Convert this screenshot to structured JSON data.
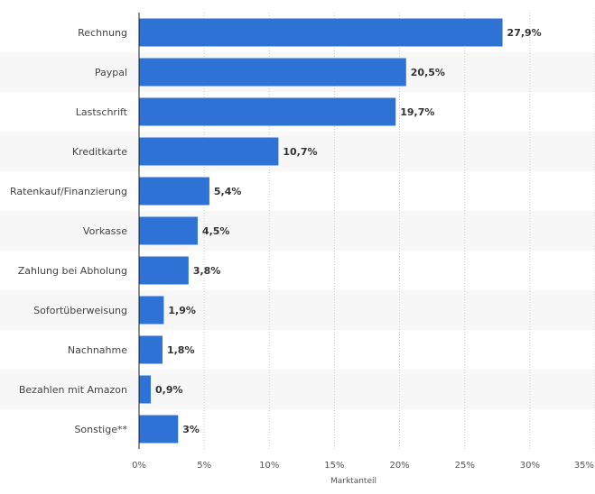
{
  "chart_data": {
    "type": "bar",
    "orientation": "horizontal",
    "categories": [
      "Rechnung",
      "Paypal",
      "Lastschrift",
      "Kreditkarte",
      "Ratenkauf/Finanzierung",
      "Vorkasse",
      "Zahlung bei Abholung",
      "Sofortüberweisung",
      "Nachnahme",
      "Bezahlen mit Amazon",
      "Sonstige**"
    ],
    "values": [
      27.9,
      20.5,
      19.7,
      10.7,
      5.4,
      4.5,
      3.8,
      1.9,
      1.8,
      0.9,
      3
    ],
    "value_labels": [
      "27,9%",
      "20,5%",
      "19,7%",
      "10,7%",
      "5,4%",
      "4,5%",
      "3,8%",
      "1,9%",
      "1,8%",
      "0,9%",
      "3%"
    ],
    "xlabel": "Marktanteil",
    "ylabel": "",
    "xlim": [
      0,
      35
    ],
    "xticks": [
      0,
      5,
      10,
      15,
      20,
      25,
      30,
      35
    ],
    "xtick_labels": [
      "0%",
      "5%",
      "10%",
      "15%",
      "20%",
      "25%",
      "30%",
      "35%"
    ],
    "grid": "vertical dashed",
    "colors": {
      "bar": "#2f72d6",
      "band": "#f7f7f7",
      "grid": "#cfcfcf",
      "axis": "#222222"
    }
  }
}
